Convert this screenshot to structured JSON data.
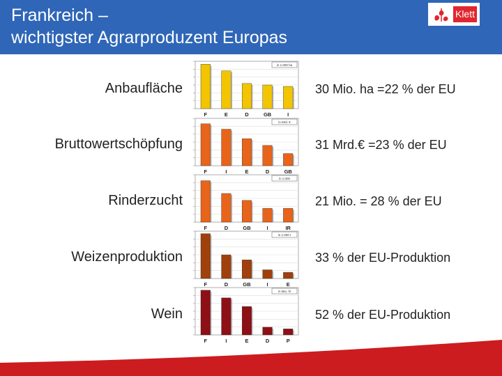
{
  "header": {
    "title_line1": "Frankreich –",
    "title_line2": "wichtigster Agrarproduzent Europas"
  },
  "logo": {
    "text": "Klett",
    "color": "#e0262e"
  },
  "colors": {
    "header_bg": "#2f66b8",
    "footer": "#cc1c1f",
    "yellow": "#f2c500",
    "orange": "#e8641a",
    "brown": "#a0400c",
    "darkred": "#8e1016"
  },
  "rows": [
    {
      "label": "Anbaufläche",
      "value": "30 Mio. ha =22 % der EU"
    },
    {
      "label": "Bruttowertschöpfung",
      "value": "31 Mrd.€ =23 % der EU"
    },
    {
      "label": "Rinderzucht",
      "value": "21 Mio. = 28 % der EU"
    },
    {
      "label": "Weizenproduktion",
      "value": "33 % der EU-Produktion"
    },
    {
      "label": "Wein",
      "value": "52 % der EU-Produktion"
    }
  ],
  "chart_data": [
    {
      "type": "bar",
      "categories": [
        "F",
        "E",
        "D",
        "GB",
        "I"
      ],
      "values": [
        30,
        25.5,
        17,
        16,
        15
      ],
      "ylim": [
        0,
        32
      ],
      "color": "#f2c500",
      "unit_label": "in 1.000 ha"
    },
    {
      "type": "bar",
      "categories": [
        "F",
        "I",
        "E",
        "D",
        "GB"
      ],
      "values": [
        31,
        27,
        20,
        15,
        9
      ],
      "ylim": [
        0,
        35
      ],
      "color": "#e8641a",
      "unit_label": "in Mrd. €"
    },
    {
      "type": "bar",
      "categories": [
        "F",
        "D",
        "GB",
        "I",
        "IR"
      ],
      "values": [
        21,
        14.5,
        11,
        7,
        7
      ],
      "ylim": [
        0,
        24
      ],
      "color": "#e8641a",
      "unit_label": "in 1.000"
    },
    {
      "type": "bar",
      "categories": [
        "F",
        "D",
        "GB",
        "I",
        "E"
      ],
      "values": [
        36,
        19,
        15,
        7,
        5
      ],
      "ylim": [
        0,
        38
      ],
      "color": "#a0400c",
      "unit_label": "in 1.000 t"
    },
    {
      "type": "bar",
      "categories": [
        "F",
        "I",
        "E",
        "D",
        "P"
      ],
      "values": [
        52,
        43,
        33,
        9,
        7
      ],
      "ylim": [
        0,
        55
      ],
      "color": "#8e1016",
      "unit_label": "in Mio. hl"
    }
  ]
}
